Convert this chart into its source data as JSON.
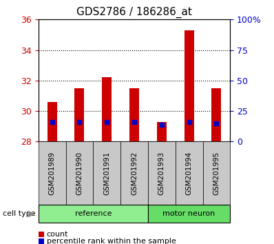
{
  "title": "GDS2786 / 186286_at",
  "samples": [
    "GSM201989",
    "GSM201990",
    "GSM201991",
    "GSM201992",
    "GSM201993",
    "GSM201994",
    "GSM201995"
  ],
  "count_values": [
    30.6,
    31.5,
    32.2,
    31.5,
    29.3,
    35.3,
    31.5
  ],
  "percentile_values": [
    29.3,
    29.3,
    29.3,
    29.3,
    29.1,
    29.3,
    29.2
  ],
  "ylim": [
    28,
    36
  ],
  "yticks": [
    28,
    30,
    32,
    34,
    36
  ],
  "right_yticks": [
    0,
    25,
    50,
    75,
    100
  ],
  "right_ylim": [
    0,
    100
  ],
  "bar_color": "#cc0000",
  "percentile_color": "#0000cc",
  "bar_width": 0.35,
  "background_color": "#ffffff",
  "title_fontsize": 11,
  "tick_fontsize": 9,
  "grid_linestyle": ":",
  "grid_color": "#000000",
  "cell_type_label": "cell type",
  "legend_count": "count",
  "legend_percentile": "percentile rank within the sample",
  "left_tick_color": "#cc0000",
  "right_tick_color": "#0000cc",
  "tick_label_bg": "#c8c8c8",
  "group_data": [
    {
      "label": "reference",
      "start": 0,
      "end": 3,
      "color": "#90EE90"
    },
    {
      "label": "motor neuron",
      "start": 4,
      "end": 6,
      "color": "#66DD66"
    }
  ]
}
